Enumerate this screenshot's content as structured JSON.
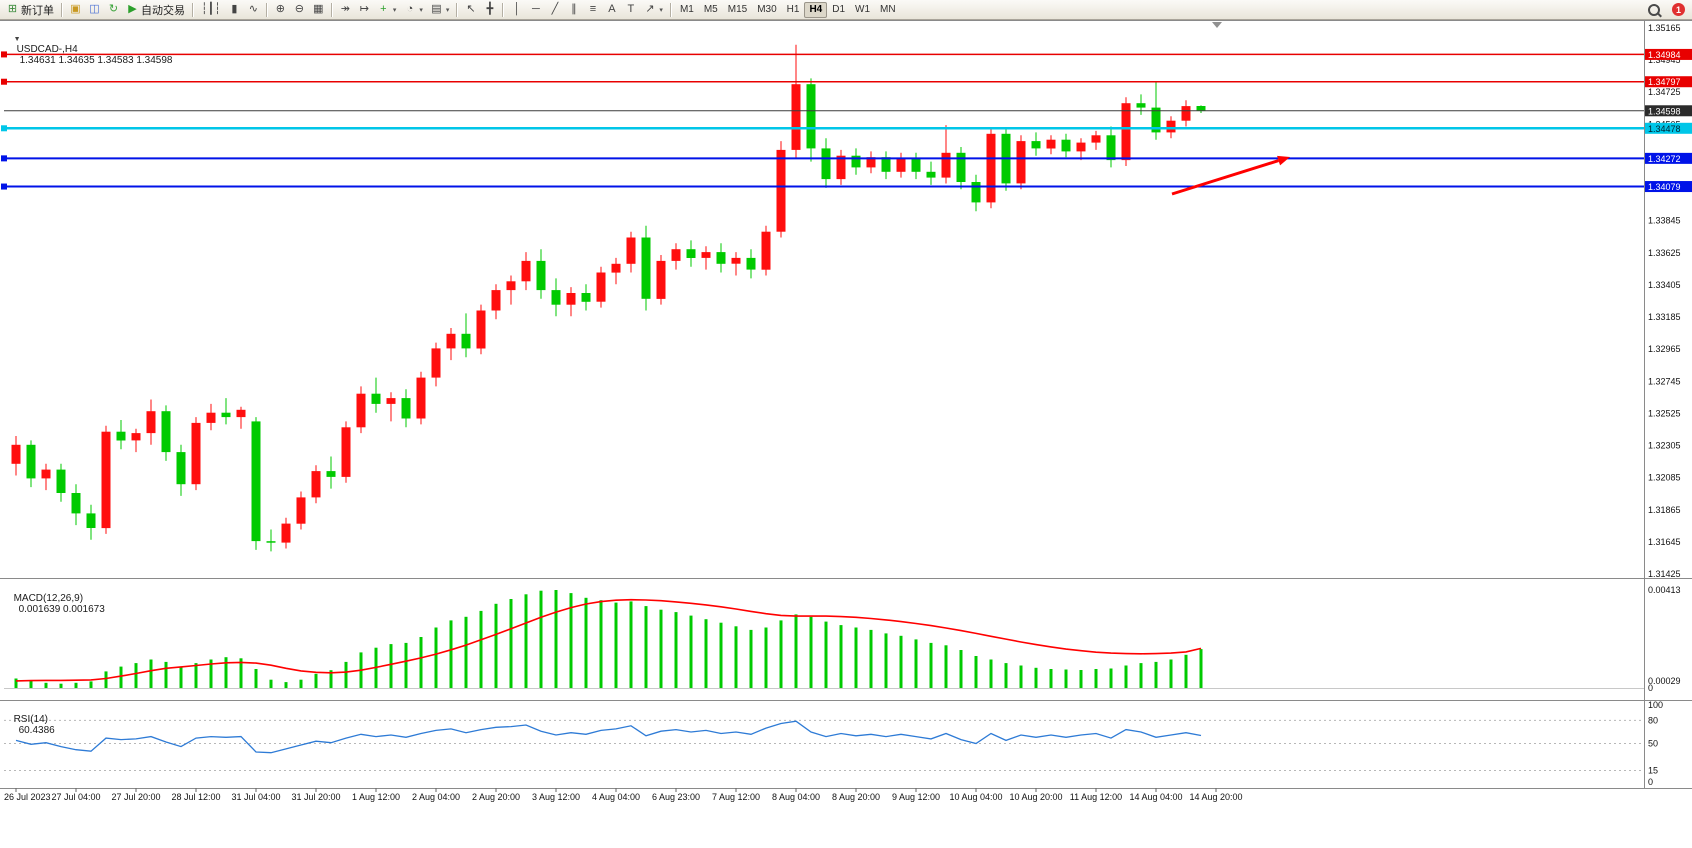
{
  "header": {
    "caret": "▼",
    "symbol_period": "USDCAD-,H4",
    "ohlc": "1.34631 1.34635 1.34583 1.34598"
  },
  "toolbar": {
    "items": [
      {
        "type": "button",
        "name": "new-order-button",
        "glyph": "⊞",
        "glyph_color": "#3a8a3a",
        "label": "新订单"
      },
      {
        "type": "sep"
      },
      {
        "type": "button",
        "name": "new-chart-button",
        "glyph": "▣",
        "glyph_color": "#c89820"
      },
      {
        "type": "button",
        "name": "profiles-button",
        "glyph": "◫",
        "glyph_color": "#4a6fd4"
      },
      {
        "type": "button",
        "name": "refresh-button",
        "glyph": "↻",
        "glyph_color": "#3aa33a"
      },
      {
        "type": "button",
        "name": "autotrading-button",
        "glyph": "▶",
        "glyph_color": "#2ca02c",
        "label": "自动交易"
      },
      {
        "type": "sep"
      },
      {
        "type": "button",
        "name": "bar-chart-button",
        "glyph": "┆┃┆",
        "glyph_color": "#444"
      },
      {
        "type": "button",
        "name": "candlestick-chart-button",
        "glyph": "▮",
        "glyph_color": "#444"
      },
      {
        "type": "button",
        "name": "line-chart-button",
        "glyph": "∿",
        "glyph_color": "#444"
      },
      {
        "type": "sep"
      },
      {
        "type": "button",
        "name": "zoom-in-button",
        "glyph": "⊕",
        "glyph_color": "#444"
      },
      {
        "type": "button",
        "name": "zoom-out-button",
        "glyph": "⊖",
        "glyph_color": "#444"
      },
      {
        "type": "button",
        "name": "tile-windows-button",
        "glyph": "▦",
        "glyph_color": "#444"
      },
      {
        "type": "sep"
      },
      {
        "type": "button",
        "name": "auto-scroll-button",
        "glyph": "↠",
        "glyph_color": "#444"
      },
      {
        "type": "button",
        "name": "chart-shift-button",
        "glyph": "↦",
        "glyph_color": "#444"
      },
      {
        "type": "button",
        "name": "indicators-button",
        "glyph": "+",
        "glyph_color": "#2ca02c",
        "caret": true
      },
      {
        "type": "button",
        "name": "periods-button",
        "glyph": "◔",
        "glyph_color": "#444",
        "caret": true
      },
      {
        "type": "button",
        "name": "templates-button",
        "glyph": "▤",
        "glyph_color": "#444",
        "caret": true
      },
      {
        "type": "sep"
      },
      {
        "type": "button",
        "name": "cursor-button",
        "glyph": "↖",
        "glyph_color": "#444"
      },
      {
        "type": "button",
        "name": "crosshair-button",
        "glyph": "╋",
        "glyph_color": "#444"
      },
      {
        "type": "sep"
      },
      {
        "type": "button",
        "name": "vertical-line-button",
        "glyph": "│",
        "glyph_color": "#444"
      },
      {
        "type": "button",
        "name": "horizontal-line-button",
        "glyph": "─",
        "glyph_color": "#444"
      },
      {
        "type": "button",
        "name": "trendline-button",
        "glyph": "╱",
        "glyph_color": "#444"
      },
      {
        "type": "button",
        "name": "channel-button",
        "glyph": "∥",
        "glyph_color": "#444"
      },
      {
        "type": "button",
        "name": "fibonacci-button",
        "glyph": "≡",
        "glyph_color": "#444"
      },
      {
        "type": "button",
        "name": "text-button",
        "glyph": "A",
        "glyph_color": "#444"
      },
      {
        "type": "button",
        "name": "text-label-button",
        "glyph": "T",
        "glyph_color": "#444"
      },
      {
        "type": "button",
        "name": "arrows-button",
        "glyph": "↗",
        "glyph_color": "#444",
        "caret": true
      },
      {
        "type": "sep"
      }
    ],
    "timeframes": [
      "M1",
      "M5",
      "M15",
      "M30",
      "H1",
      "H4",
      "D1",
      "W1",
      "MN"
    ],
    "active_timeframe": "H4",
    "notification_count": "1"
  },
  "chart_data": {
    "type": "candlestick",
    "symbol": "USDCAD-",
    "timeframe": "H4",
    "title": "USDCAD-,H4",
    "ohlc_display": {
      "open": "1.34631",
      "high": "1.34635",
      "low": "1.34583",
      "close": "1.34598"
    },
    "style": {
      "bull_color": "#ff0e0e",
      "bear_color": "#00ca00",
      "bid_line_color": "#3c3c3c",
      "macd_hist_color": "#00ca00",
      "macd_signal_color": "#ff0000",
      "rsi_line_color": "#2e7bd6"
    },
    "price_axis": {
      "max": 1.35165,
      "min": 1.31425,
      "ticks": [
        "1.35165",
        "1.34945",
        "1.34725",
        "1.34505",
        "1.34285",
        "1.34065",
        "1.33845",
        "1.33625",
        "1.33405",
        "1.33185",
        "1.32965",
        "1.32745",
        "1.32525",
        "1.32305",
        "1.32085",
        "1.31865",
        "1.31645",
        "1.31425"
      ]
    },
    "time_labels": [
      "26 Jul 2023",
      "27 Jul 04:00",
      "27 Jul 20:00",
      "28 Jul 12:00",
      "31 Jul 04:00",
      "31 Jul 20:00",
      "1 Aug 12:00",
      "2 Aug 04:00",
      "2 Aug 20:00",
      "3 Aug 12:00",
      "4 Aug 04:00",
      "6 Aug 23:00",
      "7 Aug 12:00",
      "8 Aug 04:00",
      "8 Aug 20:00",
      "9 Aug 12:00",
      "10 Aug 04:00",
      "10 Aug 20:00",
      "11 Aug 12:00",
      "14 Aug 04:00",
      "14 Aug 20:00"
    ],
    "candles": [
      [
        1.3218,
        1.3237,
        1.321,
        1.3231
      ],
      [
        1.3231,
        1.3234,
        1.3202,
        1.3208
      ],
      [
        1.3208,
        1.3218,
        1.32,
        1.3214
      ],
      [
        1.3214,
        1.3218,
        1.3192,
        1.3198
      ],
      [
        1.3198,
        1.3204,
        1.3176,
        1.3184
      ],
      [
        1.3184,
        1.319,
        1.3166,
        1.3174
      ],
      [
        1.3174,
        1.3244,
        1.317,
        1.324
      ],
      [
        1.324,
        1.3248,
        1.3228,
        1.3234
      ],
      [
        1.3234,
        1.3242,
        1.3226,
        1.3239
      ],
      [
        1.3239,
        1.3262,
        1.3231,
        1.3254
      ],
      [
        1.3254,
        1.3258,
        1.322,
        1.3226
      ],
      [
        1.3226,
        1.3231,
        1.3196,
        1.3204
      ],
      [
        1.3204,
        1.325,
        1.32,
        1.3246
      ],
      [
        1.3246,
        1.3259,
        1.3241,
        1.3253
      ],
      [
        1.3253,
        1.3263,
        1.3245,
        1.325
      ],
      [
        1.325,
        1.3257,
        1.3242,
        1.3255
      ],
      [
        1.3247,
        1.325,
        1.3159,
        1.3165
      ],
      [
        1.3165,
        1.3173,
        1.3158,
        1.3164
      ],
      [
        1.3164,
        1.3181,
        1.316,
        1.3177
      ],
      [
        1.3177,
        1.3199,
        1.3173,
        1.3195
      ],
      [
        1.3195,
        1.3217,
        1.3191,
        1.3213
      ],
      [
        1.3213,
        1.3223,
        1.3201,
        1.3209
      ],
      [
        1.3209,
        1.3247,
        1.3205,
        1.3243
      ],
      [
        1.3243,
        1.3271,
        1.3239,
        1.3266
      ],
      [
        1.3266,
        1.3277,
        1.3253,
        1.3259
      ],
      [
        1.3259,
        1.3267,
        1.3247,
        1.3263
      ],
      [
        1.3263,
        1.3269,
        1.3243,
        1.3249
      ],
      [
        1.3249,
        1.3281,
        1.3245,
        1.3277
      ],
      [
        1.3277,
        1.3301,
        1.3271,
        1.3297
      ],
      [
        1.3297,
        1.3311,
        1.3289,
        1.3307
      ],
      [
        1.3307,
        1.3321,
        1.3291,
        1.3297
      ],
      [
        1.3297,
        1.3327,
        1.3293,
        1.3323
      ],
      [
        1.3323,
        1.3341,
        1.3317,
        1.3337
      ],
      [
        1.3337,
        1.3347,
        1.3327,
        1.3343
      ],
      [
        1.3343,
        1.3363,
        1.3337,
        1.3357
      ],
      [
        1.3357,
        1.3365,
        1.3331,
        1.3337
      ],
      [
        1.3337,
        1.3345,
        1.3319,
        1.3327
      ],
      [
        1.3327,
        1.3339,
        1.3319,
        1.3335
      ],
      [
        1.3335,
        1.3341,
        1.3323,
        1.3329
      ],
      [
        1.3329,
        1.3353,
        1.3325,
        1.3349
      ],
      [
        1.3349,
        1.3359,
        1.3341,
        1.3355
      ],
      [
        1.3355,
        1.3377,
        1.3349,
        1.3373
      ],
      [
        1.3373,
        1.3381,
        1.3323,
        1.3331
      ],
      [
        1.3331,
        1.3361,
        1.3327,
        1.3357
      ],
      [
        1.3357,
        1.3369,
        1.3351,
        1.3365
      ],
      [
        1.3365,
        1.3371,
        1.3353,
        1.3359
      ],
      [
        1.3359,
        1.3367,
        1.3351,
        1.3363
      ],
      [
        1.3363,
        1.3369,
        1.3349,
        1.3355
      ],
      [
        1.3355,
        1.3363,
        1.3347,
        1.3359
      ],
      [
        1.3359,
        1.3365,
        1.3345,
        1.3351
      ],
      [
        1.3351,
        1.3381,
        1.3347,
        1.3377
      ],
      [
        1.3377,
        1.3439,
        1.3373,
        1.3433
      ],
      [
        1.3433,
        1.3505,
        1.3427,
        1.3478
      ],
      [
        1.3478,
        1.3482,
        1.3425,
        1.3434
      ],
      [
        1.3434,
        1.3441,
        1.3407,
        1.3413
      ],
      [
        1.3413,
        1.3433,
        1.3409,
        1.3429
      ],
      [
        1.3429,
        1.3434,
        1.3416,
        1.3421
      ],
      [
        1.3421,
        1.3432,
        1.3417,
        1.3428
      ],
      [
        1.3428,
        1.3432,
        1.3413,
        1.3418
      ],
      [
        1.3418,
        1.3431,
        1.3414,
        1.3427
      ],
      [
        1.3427,
        1.3431,
        1.3413,
        1.3418
      ],
      [
        1.3418,
        1.3425,
        1.3409,
        1.3414
      ],
      [
        1.3414,
        1.345,
        1.341,
        1.3431
      ],
      [
        1.3431,
        1.3435,
        1.3406,
        1.3411
      ],
      [
        1.3411,
        1.3416,
        1.3391,
        1.3397
      ],
      [
        1.3397,
        1.3448,
        1.3393,
        1.3444
      ],
      [
        1.3444,
        1.3448,
        1.3405,
        1.341
      ],
      [
        1.341,
        1.3443,
        1.3406,
        1.3439
      ],
      [
        1.3439,
        1.3445,
        1.3429,
        1.3434
      ],
      [
        1.3434,
        1.3443,
        1.343,
        1.344
      ],
      [
        1.344,
        1.3444,
        1.3428,
        1.3432
      ],
      [
        1.3432,
        1.3441,
        1.3426,
        1.3438
      ],
      [
        1.3438,
        1.3446,
        1.3433,
        1.3443
      ],
      [
        1.3443,
        1.3449,
        1.3421,
        1.3426
      ],
      [
        1.3426,
        1.3469,
        1.3422,
        1.3465
      ],
      [
        1.3465,
        1.3471,
        1.3457,
        1.3462
      ],
      [
        1.3462,
        1.348,
        1.344,
        1.3445
      ],
      [
        1.3445,
        1.3456,
        1.3441,
        1.3453
      ],
      [
        1.3453,
        1.3467,
        1.3449,
        1.3463
      ],
      [
        1.34631,
        1.34635,
        1.34583,
        1.34598
      ]
    ],
    "bid": {
      "price_text": "1.34598",
      "value": 1.34598
    },
    "levels": [
      {
        "name": "resistance-line-1",
        "price_text": "1.34984",
        "value": 1.34984,
        "color": "#e80000",
        "text_color": "#ffffff",
        "width": 1.5
      },
      {
        "name": "resistance-line-2",
        "price_text": "1.34797",
        "value": 1.34797,
        "color": "#e80000",
        "text_color": "#ffffff",
        "width": 1.5
      },
      {
        "name": "support-line-cyan",
        "price_text": "1.34478",
        "value": 1.34478,
        "color": "#00c6e8",
        "text_color": "#00222e",
        "width": 2.5
      },
      {
        "name": "support-line-blue-1",
        "price_text": "1.34272",
        "value": 1.34272,
        "color": "#0013e8",
        "text_color": "#ffffff",
        "width": 2
      },
      {
        "name": "support-line-blue-2",
        "price_text": "1.34079",
        "value": 1.34079,
        "color": "#0013e8",
        "text_color": "#ffffff",
        "width": 2
      }
    ],
    "macd": {
      "label": "MACD(12,26,9)",
      "values_text": "0.001639 0.001673",
      "axis": [
        {
          "text": "0.00413",
          "value": 0.00413
        },
        {
          "text": "0.00029",
          "value": 0.00029
        },
        {
          "text": "0",
          "value": 0
        }
      ],
      "histogram": [
        0.0004,
        0.0003,
        0.00022,
        0.00018,
        0.00022,
        0.00028,
        0.0007,
        0.0009,
        0.00105,
        0.0012,
        0.0011,
        0.0009,
        0.00105,
        0.0012,
        0.0013,
        0.00125,
        0.0008,
        0.00035,
        0.00025,
        0.00035,
        0.0006,
        0.00075,
        0.0011,
        0.0015,
        0.0017,
        0.00185,
        0.0019,
        0.00215,
        0.00255,
        0.00285,
        0.003,
        0.00325,
        0.00355,
        0.00375,
        0.00395,
        0.0041,
        0.00413,
        0.004,
        0.0038,
        0.0037,
        0.0036,
        0.00365,
        0.00345,
        0.0033,
        0.0032,
        0.00305,
        0.0029,
        0.00275,
        0.0026,
        0.00245,
        0.00255,
        0.00285,
        0.0031,
        0.003,
        0.0028,
        0.00265,
        0.00255,
        0.00245,
        0.0023,
        0.0022,
        0.00205,
        0.0019,
        0.0018,
        0.0016,
        0.00135,
        0.0012,
        0.00105,
        0.00095,
        0.00085,
        0.0008,
        0.00078,
        0.00076,
        0.0008,
        0.00082,
        0.00095,
        0.00105,
        0.0011,
        0.0012,
        0.0014,
        0.00164
      ],
      "signal": [
        0.0003,
        0.00031,
        0.00032,
        0.00032,
        0.00033,
        0.00034,
        0.0004,
        0.0005,
        0.00061,
        0.00073,
        0.00083,
        0.00089,
        0.00095,
        0.00101,
        0.00106,
        0.00108,
        0.00105,
        0.00096,
        0.00083,
        0.00072,
        0.00066,
        0.00064,
        0.00067,
        0.00075,
        0.00087,
        0.001,
        0.00113,
        0.00127,
        0.00143,
        0.00161,
        0.00181,
        0.00203,
        0.00226,
        0.0025,
        0.00274,
        0.00298,
        0.0032,
        0.00339,
        0.00354,
        0.00364,
        0.0037,
        0.00372,
        0.00371,
        0.00368,
        0.00363,
        0.00357,
        0.0035,
        0.00342,
        0.00333,
        0.00323,
        0.00313,
        0.00306,
        0.00303,
        0.00303,
        0.00303,
        0.00301,
        0.00298,
        0.00293,
        0.00287,
        0.0028,
        0.00272,
        0.00263,
        0.00253,
        0.00242,
        0.0023,
        0.00218,
        0.00206,
        0.00194,
        0.00183,
        0.00173,
        0.00164,
        0.00157,
        0.00151,
        0.00147,
        0.00145,
        0.00144,
        0.00145,
        0.00147,
        0.00152,
        0.00167
      ]
    },
    "rsi": {
      "label": "RSI(14)",
      "value": "60.4386",
      "axis": [
        {
          "text": "100",
          "value": 100
        },
        {
          "text": "80",
          "value": 80
        },
        {
          "text": "50",
          "value": 50
        },
        {
          "text": "15",
          "value": 15
        },
        {
          "text": "0",
          "value": 0
        }
      ],
      "levels": [
        80,
        50,
        15
      ],
      "series": [
        54,
        49,
        51,
        46,
        42,
        40,
        57,
        55,
        56,
        59,
        52,
        46,
        57,
        59,
        58,
        59,
        39,
        38,
        43,
        48,
        53,
        51,
        57,
        62,
        59,
        61,
        58,
        63,
        67,
        69,
        64,
        68,
        71,
        72,
        74,
        66,
        61,
        64,
        62,
        67,
        69,
        73,
        60,
        66,
        68,
        65,
        67,
        63,
        65,
        62,
        70,
        76,
        79,
        65,
        59,
        63,
        60,
        62,
        59,
        62,
        59,
        56,
        63,
        55,
        50,
        63,
        54,
        61,
        58,
        61,
        58,
        61,
        63,
        57,
        68,
        65,
        58,
        61,
        64,
        60.4386
      ]
    },
    "annotation": {
      "type": "arrow",
      "color": "#ff0000",
      "tail": [
        1172,
        194
      ],
      "tip": [
        1290,
        157
      ]
    }
  }
}
